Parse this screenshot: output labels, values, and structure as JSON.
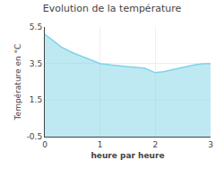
{
  "chart_data": {
    "type": "area",
    "title": "Evolution de la température",
    "xlabel": "heure par heure",
    "ylabel": "Température en °C",
    "x": [
      0,
      0.15,
      0.3,
      0.5,
      0.7,
      1.0,
      1.2,
      1.4,
      1.6,
      1.8,
      2.0,
      2.15,
      2.3,
      2.5,
      2.7,
      2.85,
      3.0
    ],
    "values": [
      5.1,
      4.75,
      4.4,
      4.1,
      3.85,
      3.5,
      3.42,
      3.35,
      3.3,
      3.25,
      3.0,
      3.05,
      3.15,
      3.3,
      3.42,
      3.48,
      3.5
    ],
    "color": "#7dd4e8",
    "xlim": [
      0,
      3
    ],
    "xticks": [
      0,
      1,
      2,
      3
    ],
    "ylim": [
      -0.5,
      5.5
    ],
    "yticks": [
      -0.5,
      1.5,
      3.5,
      5.5
    ],
    "grid": true
  }
}
